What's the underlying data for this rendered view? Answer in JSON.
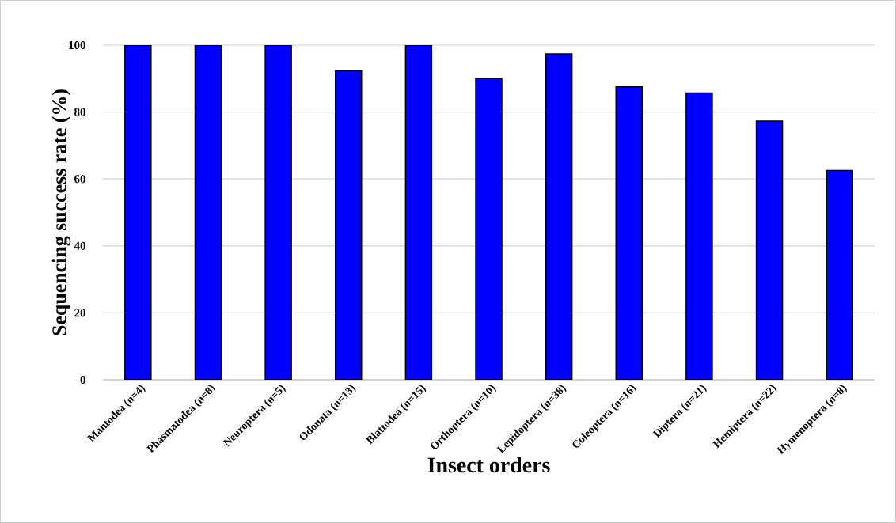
{
  "chart_data": {
    "type": "bar",
    "xlabel": "Insect orders",
    "ylabel": "Sequencing success rate (%)",
    "categories": [
      "Mantodea (n=4)",
      "Phasmatodea (n=8)",
      "Neuroptera (n=5)",
      "Odonata (n=13)",
      "Blattodea (n=15)",
      "Orthoptera (n=10)",
      "Lepidoptera (n=38)",
      "Coleoptera (n=16)",
      "Diptera (n=21)",
      "Hemiptera (n=22)",
      "Hymenoptera (n=8)"
    ],
    "values": [
      100,
      100,
      100,
      92.3,
      100,
      90,
      97.4,
      87.5,
      85.7,
      77.3,
      62.5
    ],
    "color": "#0000ff",
    "ylim": [
      0,
      100
    ],
    "yticks": [
      0,
      20,
      40,
      60,
      80,
      100
    ],
    "grid": "y"
  }
}
